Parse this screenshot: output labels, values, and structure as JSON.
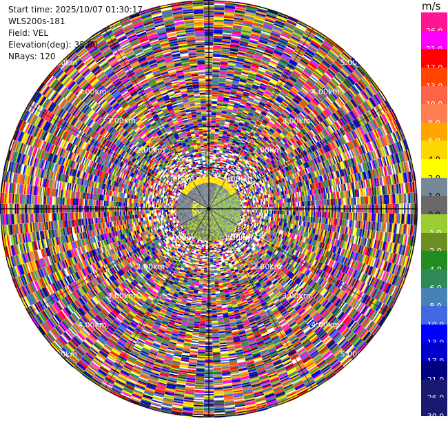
{
  "info": {
    "start_time": "Start time: 2025/10/07 01:30:17",
    "instrument": "WLS200s-181",
    "field": "Field: VEL",
    "elevation": "Elevation(deg): 35.00",
    "nrays": "NRays: 120"
  },
  "colorbar": {
    "unit": "m/s",
    "levels": [
      {
        "label": "26.0",
        "color": "#ff1493"
      },
      {
        "label": "21.0",
        "color": "#ff00ff"
      },
      {
        "label": "17.0",
        "color": "#ff0000"
      },
      {
        "label": "13.0",
        "color": "#ff4500"
      },
      {
        "label": "10.0",
        "color": "#ff6347"
      },
      {
        "label": "8.0",
        "color": "#ff7f50"
      },
      {
        "label": "6.0",
        "color": "#ffa500"
      },
      {
        "label": "4.0",
        "color": "#ffd700"
      },
      {
        "label": "2.0",
        "color": "#ffff00"
      },
      {
        "label": "1.0",
        "color": "#778899"
      },
      {
        "label": "0.0",
        "color": "#696969"
      },
      {
        "label": "-1.0",
        "color": "#9acd32"
      },
      {
        "label": "-2.0",
        "color": "#6b8e23"
      },
      {
        "label": "-4.0",
        "color": "#228b22"
      },
      {
        "label": "-6.0",
        "color": "#2e8b57"
      },
      {
        "label": "-8.0",
        "color": "#4682b4"
      },
      {
        "label": "-10.0",
        "color": "#4169e1"
      },
      {
        "label": "-13.0",
        "color": "#0000ff"
      },
      {
        "label": "-17.0",
        "color": "#0000cd"
      },
      {
        "label": "-21.0",
        "color": "#000080"
      },
      {
        "label": "-26.0",
        "color": "#191970"
      },
      {
        "label": "-30.0",
        "color": "#191970"
      }
    ]
  },
  "chart_data": {
    "type": "heatmap",
    "projection": "polar PPI",
    "field": "VEL",
    "elevation_deg": 35.0,
    "nrays": 120,
    "range_rings_km": [
      1.0,
      2.0,
      3.0,
      4.0,
      5.0
    ],
    "range_ring_labels": [
      "1.00km",
      "2.00km",
      "3.00km",
      "4.00km",
      "5.00km"
    ],
    "max_range_km": 5.05,
    "inner_region_km": 1.0,
    "inner_region_note": "mostly 0.0 to 1.0 and -1.0 to -2.0 with 2.0 to 4.0 arc near north; outer rings noisy across full scale",
    "colorbar_ticks": [
      26.0,
      21.0,
      17.0,
      13.0,
      10.0,
      8.0,
      6.0,
      4.0,
      2.0,
      1.0,
      0.0,
      -1.0,
      -2.0,
      -4.0,
      -6.0,
      -8.0,
      -10.0,
      -13.0,
      -17.0,
      -21.0,
      -26.0,
      -30.0
    ],
    "grid": true
  }
}
